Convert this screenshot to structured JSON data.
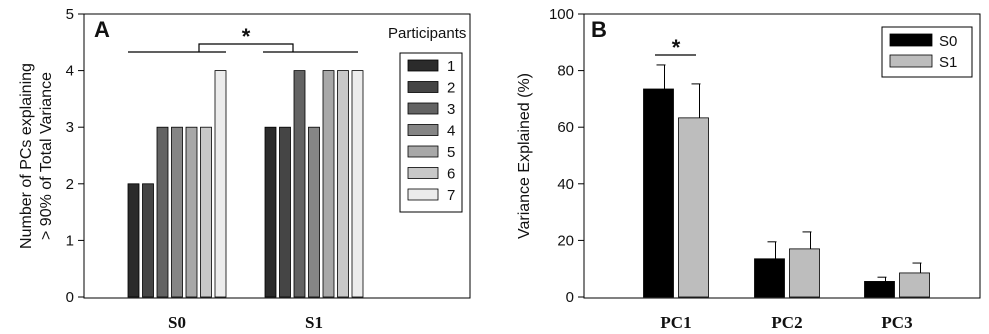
{
  "chart_data": [
    {
      "panel": "A",
      "type": "bar",
      "ylabel_line1": "Number of PCs explaining",
      "ylabel_line2": "> 90% of Total Variance",
      "categories": [
        "S0",
        "S1"
      ],
      "ylim": [
        0,
        5
      ],
      "yticks": [
        0,
        1,
        2,
        3,
        4,
        5
      ],
      "legend_title": "Participants",
      "legend_position": "top-right",
      "series": [
        {
          "name": "1",
          "color": "#2b2b2b",
          "values": [
            2,
            3
          ]
        },
        {
          "name": "2",
          "color": "#454545",
          "values": [
            2,
            3
          ]
        },
        {
          "name": "3",
          "color": "#636363",
          "values": [
            3,
            4
          ]
        },
        {
          "name": "4",
          "color": "#858585",
          "values": [
            3,
            3
          ]
        },
        {
          "name": "5",
          "color": "#a8a8a8",
          "values": [
            3,
            4
          ]
        },
        {
          "name": "6",
          "color": "#c8c8c8",
          "values": [
            3,
            4
          ]
        },
        {
          "name": "7",
          "color": "#ececec",
          "values": [
            4,
            4
          ]
        }
      ],
      "significance": "*",
      "grid": false
    },
    {
      "panel": "B",
      "type": "bar",
      "ylabel": "Variance Explained (%)",
      "categories": [
        "PC1",
        "PC2",
        "PC3"
      ],
      "ylim": [
        0,
        100
      ],
      "yticks": [
        0,
        20,
        40,
        60,
        80,
        100
      ],
      "legend_position": "top-right",
      "series": [
        {
          "name": "S0",
          "color": "#000000",
          "values": [
            73.5,
            13.5,
            5.5
          ],
          "errors": [
            8.5,
            6,
            1.5
          ]
        },
        {
          "name": "S1",
          "color": "#bdbdbd",
          "values": [
            63.3,
            17,
            8.5
          ],
          "errors": [
            12,
            6,
            3.5
          ]
        }
      ],
      "significance": "*",
      "grid": false
    }
  ]
}
